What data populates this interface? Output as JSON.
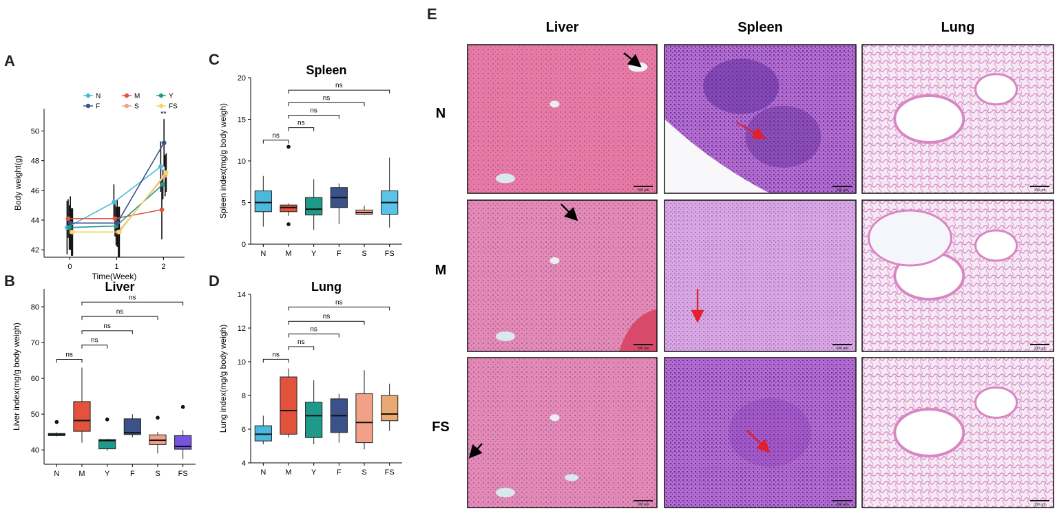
{
  "panels": {
    "A": {
      "letter": "A",
      "chart_data": {
        "type": "line",
        "title": "",
        "xlabel": "Time(Week)",
        "ylabel": "Body weight(g)",
        "x": [
          0,
          1,
          2
        ],
        "xticks": [
          "0",
          "1",
          "2"
        ],
        "xlim": [
          -0.55,
          2.45
        ],
        "ylim": [
          41.5,
          51.5
        ],
        "yticks": [
          42,
          44,
          46,
          48,
          50
        ],
        "legend_position": "top",
        "annotation": "**",
        "series": [
          {
            "name": "N",
            "color": "#4cb8dc",
            "values": [
              43.5,
              45.2,
              47.6
            ],
            "err": [
              1.8,
              1.2,
              1.7
            ]
          },
          {
            "name": "M",
            "color": "#e2523c",
            "values": [
              44.1,
              44.1,
              44.7
            ],
            "err": [
              1.3,
              1.2,
              2.0
            ]
          },
          {
            "name": "Y",
            "color": "#1f9a8a",
            "values": [
              43.5,
              43.6,
              46.4
            ],
            "err": [
              1.5,
              1.3,
              1.0
            ]
          },
          {
            "name": "F",
            "color": "#3a5289",
            "values": [
              43.8,
              43.8,
              49.2
            ],
            "err": [
              1.8,
              1.6,
              1.6
            ]
          },
          {
            "name": "S",
            "color": "#f0a187",
            "values": [
              43.2,
              43.2,
              47.0
            ],
            "err": [
              1.6,
              1.7,
              1.4
            ]
          },
          {
            "name": "FS",
            "color": "#f3d56a",
            "values": [
              43.2,
              43.2,
              47.2
            ],
            "err": [
              1.6,
              1.7,
              1.3
            ]
          }
        ]
      }
    },
    "B": {
      "letter": "B",
      "chart_data": {
        "type": "box",
        "title": "Liver",
        "xlabel": "",
        "ylabel": "Liver index(mg/g body weigh)",
        "categories": [
          "N",
          "M",
          "Y",
          "F",
          "S",
          "FS"
        ],
        "ylim": [
          36,
          85
        ],
        "yticks": [
          40,
          50,
          60,
          70,
          80
        ],
        "boxes": [
          {
            "name": "N",
            "color": "#4cb8dc",
            "min": 43.8,
            "q1": 44.0,
            "median": 44.3,
            "q3": 44.6,
            "max": 44.9,
            "outliers": [
              47.8
            ]
          },
          {
            "name": "M",
            "color": "#e2523c",
            "min": 42.0,
            "q1": 45.2,
            "median": 48.2,
            "q3": 53.5,
            "max": 63.0,
            "outliers": []
          },
          {
            "name": "Y",
            "color": "#1f9a8a",
            "min": 39.8,
            "q1": 40.3,
            "median": 42.6,
            "q3": 42.9,
            "max": 43.1,
            "outliers": [
              48.5
            ]
          },
          {
            "name": "F",
            "color": "#3a5289",
            "min": 43.5,
            "q1": 44.3,
            "median": 44.8,
            "q3": 48.7,
            "max": 50.0,
            "outliers": []
          },
          {
            "name": "S",
            "color": "#f0a187",
            "min": 39.0,
            "q1": 41.5,
            "median": 42.7,
            "q3": 44.2,
            "max": 45.0,
            "outliers": [
              49.0
            ]
          },
          {
            "name": "FS",
            "color": "#7654e0",
            "min": 37.5,
            "q1": 40.2,
            "median": 41.0,
            "q3": 44.0,
            "max": 45.5,
            "outliers": [
              52.0
            ]
          }
        ],
        "brackets": [
          {
            "from": "N",
            "to": "M",
            "y": 65.3,
            "label": "ns"
          },
          {
            "from": "M",
            "to": "Y",
            "y": 69.3,
            "label": "ns"
          },
          {
            "from": "M",
            "to": "F",
            "y": 73.3,
            "label": "ns"
          },
          {
            "from": "M",
            "to": "S",
            "y": 77.3,
            "label": "ns"
          },
          {
            "from": "M",
            "to": "FS",
            "y": 81.3,
            "label": "ns"
          }
        ]
      }
    },
    "C": {
      "letter": "C",
      "chart_data": {
        "type": "box",
        "title": "Spleen",
        "xlabel": "",
        "ylabel": "Spleen index(mg/g body weigh)",
        "categories": [
          "N",
          "M",
          "Y",
          "F",
          "S",
          "FS"
        ],
        "ylim": [
          0,
          20
        ],
        "yticks": [
          0,
          5,
          10,
          15,
          20
        ],
        "boxes": [
          {
            "name": "N",
            "color": "#4cb8dc",
            "min": 2.1,
            "q1": 3.9,
            "median": 5.0,
            "q3": 6.4,
            "max": 8.2,
            "outliers": []
          },
          {
            "name": "M",
            "color": "#e2523c",
            "min": 3.4,
            "q1": 3.9,
            "median": 4.4,
            "q3": 4.7,
            "max": 4.9,
            "outliers": [
              11.7,
              2.4
            ]
          },
          {
            "name": "Y",
            "color": "#1f9a8a",
            "min": 1.7,
            "q1": 3.5,
            "median": 4.2,
            "q3": 5.6,
            "max": 7.8,
            "outliers": []
          },
          {
            "name": "F",
            "color": "#3a5289",
            "min": 2.4,
            "q1": 4.4,
            "median": 5.6,
            "q3": 6.8,
            "max": 7.3,
            "outliers": []
          },
          {
            "name": "S",
            "color": "#f0a187",
            "min": 3.5,
            "q1": 3.6,
            "median": 3.8,
            "q3": 4.1,
            "max": 4.6,
            "outliers": []
          },
          {
            "name": "FS",
            "color": "#5bc3e9",
            "min": 2.0,
            "q1": 3.6,
            "median": 5.0,
            "q3": 6.4,
            "max": 10.4,
            "outliers": []
          }
        ],
        "brackets": [
          {
            "from": "N",
            "to": "M",
            "y": 12.5,
            "label": "ns"
          },
          {
            "from": "M",
            "to": "Y",
            "y": 14.0,
            "label": "ns"
          },
          {
            "from": "M",
            "to": "F",
            "y": 15.5,
            "label": "ns"
          },
          {
            "from": "M",
            "to": "S",
            "y": 17.0,
            "label": "ns"
          },
          {
            "from": "M",
            "to": "FS",
            "y": 18.5,
            "label": "ns"
          }
        ]
      }
    },
    "D": {
      "letter": "D",
      "chart_data": {
        "type": "box",
        "title": "Lung",
        "xlabel": "",
        "ylabel": "Lung index(mg/g body weigh)",
        "categories": [
          "N",
          "M",
          "Y",
          "F",
          "S",
          "FS"
        ],
        "ylim": [
          4,
          14
        ],
        "yticks": [
          4,
          6,
          8,
          10,
          12,
          14
        ],
        "boxes": [
          {
            "name": "N",
            "color": "#4cb8dc",
            "min": 5.1,
            "q1": 5.3,
            "median": 5.7,
            "q3": 6.2,
            "max": 6.8,
            "outliers": []
          },
          {
            "name": "M",
            "color": "#e2523c",
            "min": 5.5,
            "q1": 5.7,
            "median": 7.1,
            "q3": 9.1,
            "max": 9.6,
            "outliers": []
          },
          {
            "name": "Y",
            "color": "#1f9a8a",
            "min": 5.1,
            "q1": 5.5,
            "median": 6.8,
            "q3": 7.6,
            "max": 8.9,
            "outliers": []
          },
          {
            "name": "F",
            "color": "#3a5289",
            "min": 5.2,
            "q1": 5.8,
            "median": 6.8,
            "q3": 7.8,
            "max": 8.1,
            "outliers": []
          },
          {
            "name": "S",
            "color": "#f0a187",
            "min": 4.8,
            "q1": 5.2,
            "median": 6.4,
            "q3": 8.1,
            "max": 9.5,
            "outliers": []
          },
          {
            "name": "FS",
            "color": "#eaa873",
            "min": 5.9,
            "q1": 6.5,
            "median": 6.9,
            "q3": 8.0,
            "max": 8.7,
            "outliers": []
          }
        ],
        "brackets": [
          {
            "from": "N",
            "to": "M",
            "y": 10.15,
            "label": "ns"
          },
          {
            "from": "M",
            "to": "Y",
            "y": 10.9,
            "label": "ns"
          },
          {
            "from": "M",
            "to": "F",
            "y": 11.65,
            "label": "ns"
          },
          {
            "from": "M",
            "to": "S",
            "y": 12.4,
            "label": "ns"
          },
          {
            "from": "M",
            "to": "FS",
            "y": 13.25,
            "label": "ns"
          }
        ]
      }
    },
    "E": {
      "letter": "E",
      "columns": [
        "Liver",
        "Spleen",
        "Lung"
      ],
      "rows": [
        "N",
        "M",
        "FS"
      ],
      "scale_bar": "100 μm"
    }
  }
}
